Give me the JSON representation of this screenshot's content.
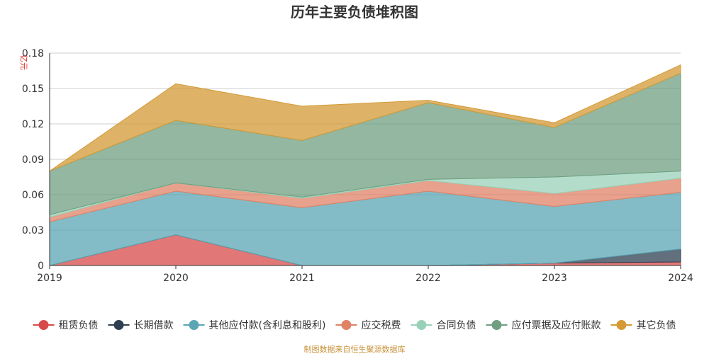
{
  "chart_data": {
    "type": "area",
    "stacked": true,
    "title": "历年主要负债堆积图",
    "unit": "亿元",
    "x": [
      "2019",
      "2020",
      "2021",
      "2022",
      "2023",
      "2024"
    ],
    "ylim": [
      0,
      0.18
    ],
    "yticks": [
      "0",
      "0.03",
      "0.06",
      "0.09",
      "0.12",
      "0.15",
      "0.18"
    ],
    "ytick_values": [
      0,
      0.03,
      0.06,
      0.09,
      0.12,
      0.15,
      0.18
    ],
    "grid": true,
    "legend_position": "bottom",
    "series": [
      {
        "name": "租赁负债",
        "color": "#d84a4a",
        "values": [
          0,
          0.026,
          0,
          0,
          0.002,
          0.003
        ]
      },
      {
        "name": "长期借款",
        "color": "#2e3f52",
        "values": [
          0,
          0,
          0,
          0,
          0,
          0.011
        ]
      },
      {
        "name": "其他应付款(含利息和股利)",
        "color": "#5aa6b4",
        "values": [
          0.037,
          0.037,
          0.049,
          0.063,
          0.048,
          0.048
        ]
      },
      {
        "name": "应交税费",
        "color": "#df8266",
        "values": [
          0.004,
          0.007,
          0.008,
          0.009,
          0.011,
          0.012
        ]
      },
      {
        "name": "合同负债",
        "color": "#99d1b8",
        "values": [
          0.002,
          0,
          0.001,
          0.001,
          0.014,
          0.006
        ]
      },
      {
        "name": "应付票据及应付账款",
        "color": "#6f9f80",
        "values": [
          0.037,
          0.053,
          0.048,
          0.065,
          0.042,
          0.083
        ]
      },
      {
        "name": "其它负债",
        "color": "#d39a36",
        "values": [
          0,
          0.031,
          0.029,
          0.002,
          0.004,
          0.007
        ]
      }
    ]
  },
  "source": "制图数据来自恒生聚源数据库"
}
